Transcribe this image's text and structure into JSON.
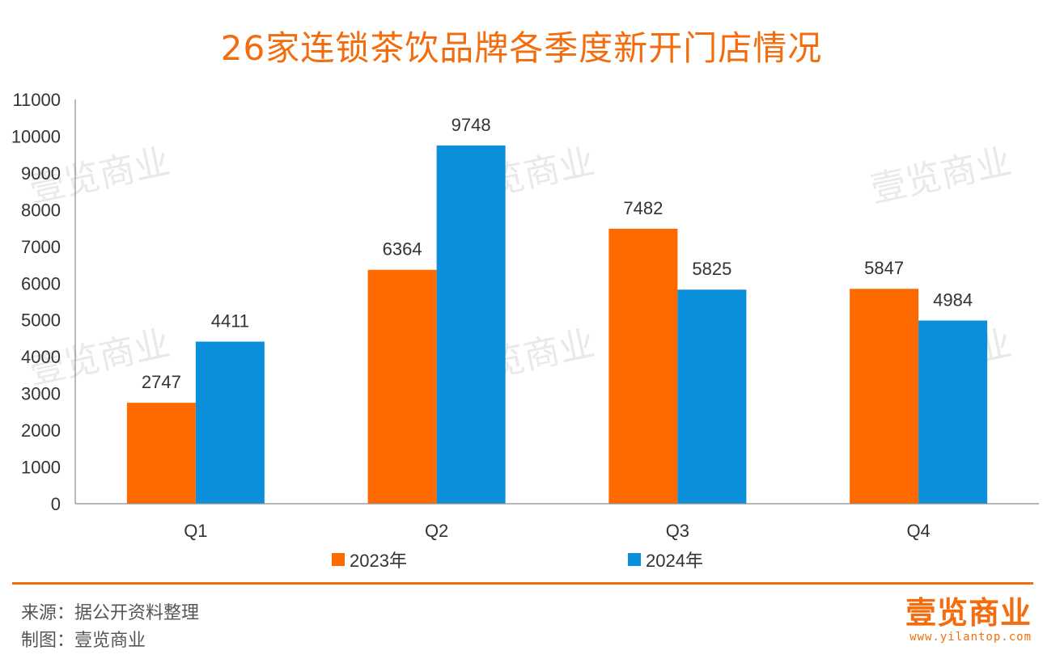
{
  "chart_data": {
    "type": "bar",
    "title": "26家连锁茶饮品牌各季度新开门店情况",
    "categories": [
      "Q1",
      "Q2",
      "Q3",
      "Q4"
    ],
    "series": [
      {
        "name": "2023年",
        "values": [
          2747,
          6364,
          7482,
          5847
        ],
        "color": "#FF6A00"
      },
      {
        "name": "2024年",
        "values": [
          4411,
          9748,
          5825,
          4984
        ],
        "color": "#0B8FDB"
      }
    ],
    "ylim": [
      0,
      11000
    ],
    "yticks": [
      "0",
      "1000",
      "2000",
      "3000",
      "4000",
      "5000",
      "6000",
      "7000",
      "8000",
      "9000",
      "10000",
      "11000"
    ],
    "legend_position": "bottom",
    "grid": false
  },
  "watermark": "壹览商业",
  "footer": {
    "source": "来源：据公开资料整理",
    "maker": "制图：壹览商业"
  },
  "brand": {
    "logo_text": "壹览商业",
    "url": "www.yilantop.com",
    "color": "#F36C0D"
  }
}
